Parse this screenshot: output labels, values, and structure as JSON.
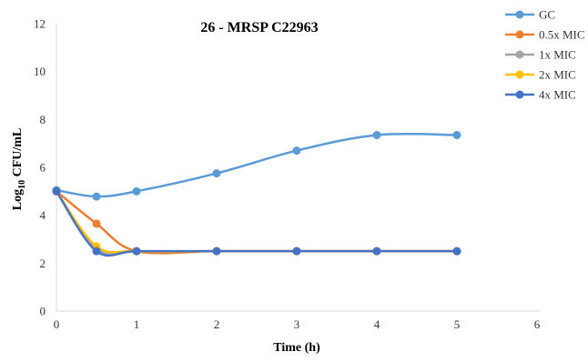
{
  "chart_data": {
    "type": "line",
    "title": "26 - MRSP C22963",
    "xlabel": "Time (h)",
    "ylabel_main": "Log",
    "ylabel_sub": "10",
    "ylabel_tail": " CFU/mL",
    "xlim": [
      0,
      6
    ],
    "ylim": [
      0,
      12
    ],
    "x_ticks": [
      "0",
      "1",
      "2",
      "3",
      "4",
      "5",
      "6"
    ],
    "y_ticks": [
      "0",
      "2",
      "4",
      "6",
      "8",
      "10",
      "12"
    ],
    "x_tick_values": [
      0,
      1,
      2,
      3,
      4,
      5,
      6
    ],
    "y_tick_values": [
      0,
      2,
      4,
      6,
      8,
      10,
      12
    ],
    "grid": false,
    "legend_position": "right",
    "x": [
      0,
      0.5,
      1,
      2,
      3,
      4,
      5
    ],
    "series": [
      {
        "name": "GC",
        "color": "#5B9BD5",
        "values": [
          5.05,
          4.78,
          5.0,
          5.75,
          6.7,
          7.35,
          7.35
        ]
      },
      {
        "name": "0.5x MIC",
        "color": "#ED7D31",
        "values": [
          5.0,
          3.65,
          2.5,
          2.5,
          2.5,
          2.5,
          2.5
        ]
      },
      {
        "name": "1x MIC",
        "color": "#A5A5A5",
        "values": [
          5.0,
          2.6,
          2.5,
          2.5,
          2.5,
          2.5,
          2.5
        ]
      },
      {
        "name": "2x MIC",
        "color": "#FFC000",
        "values": [
          5.0,
          2.7,
          2.5,
          2.5,
          2.5,
          2.5,
          2.5
        ]
      },
      {
        "name": "4x MIC",
        "color": "#4472C4",
        "values": [
          5.0,
          2.5,
          2.5,
          2.5,
          2.5,
          2.5,
          2.5
        ]
      }
    ]
  }
}
